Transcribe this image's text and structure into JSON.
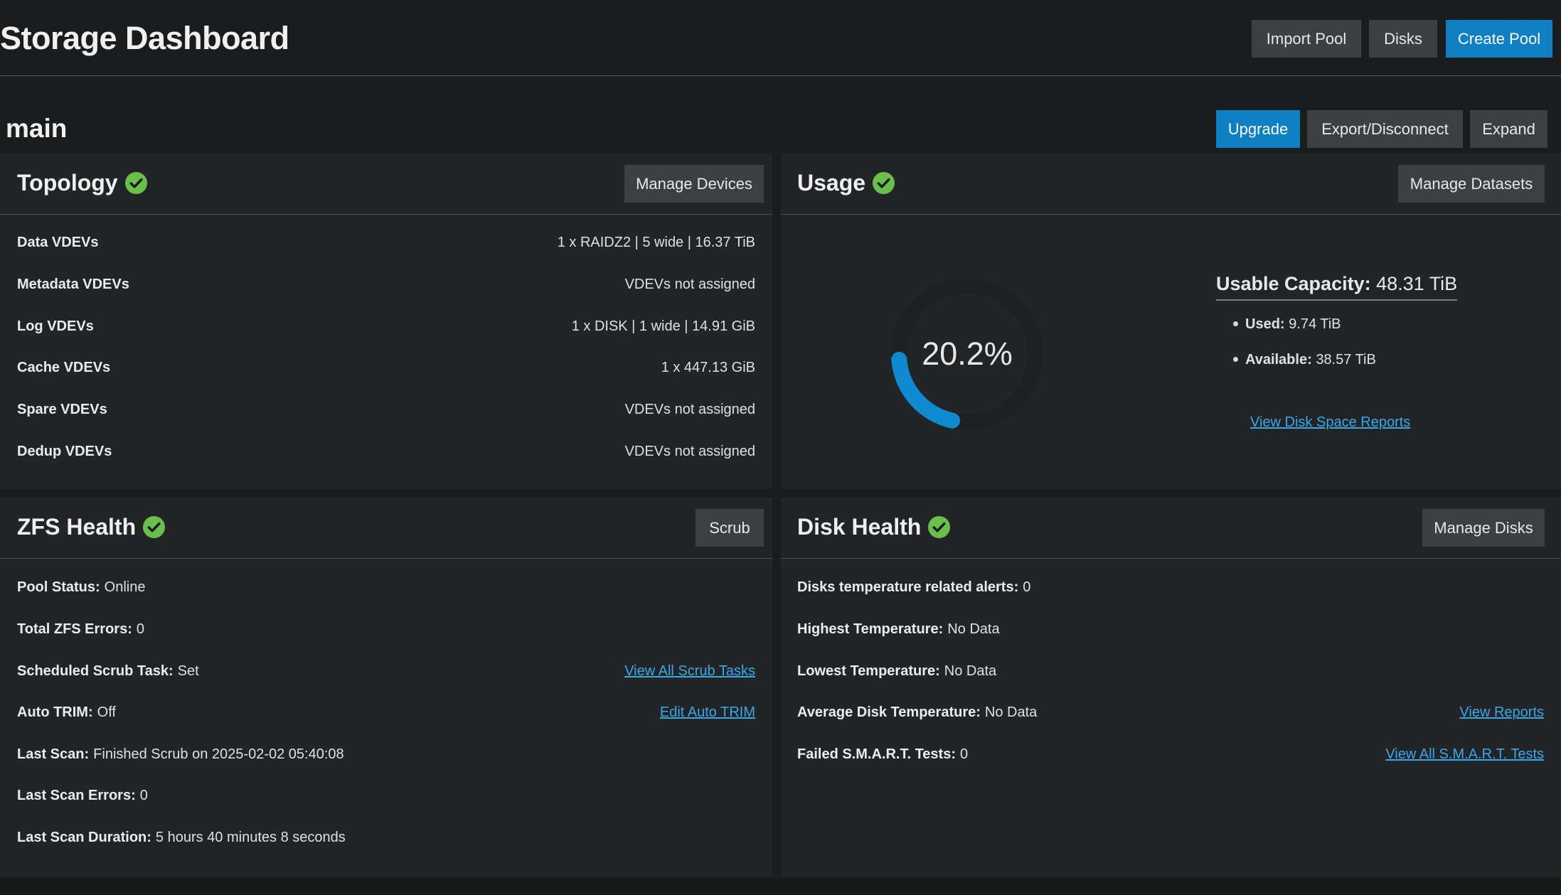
{
  "header": {
    "title": "Storage Dashboard",
    "buttons": {
      "import_pool": "Import Pool",
      "disks": "Disks",
      "create_pool": "Create Pool"
    }
  },
  "pool": {
    "name": "main",
    "buttons": {
      "upgrade": "Upgrade",
      "export_disconnect": "Export/Disconnect",
      "expand": "Expand"
    }
  },
  "topology": {
    "title": "Topology",
    "manage_button": "Manage Devices",
    "rows": [
      {
        "label": "Data VDEVs",
        "value": "1 x RAIDZ2 | 5 wide | 16.37 TiB"
      },
      {
        "label": "Metadata VDEVs",
        "value": "VDEVs not assigned"
      },
      {
        "label": "Log VDEVs",
        "value": "1 x DISK | 1 wide | 14.91 GiB"
      },
      {
        "label": "Cache VDEVs",
        "value": "1 x 447.13 GiB"
      },
      {
        "label": "Spare VDEVs",
        "value": "VDEVs not assigned"
      },
      {
        "label": "Dedup VDEVs",
        "value": "VDEVs not assigned"
      }
    ]
  },
  "usage": {
    "title": "Usage",
    "manage_button": "Manage Datasets",
    "percent_text": "20.2%",
    "used_fraction": 0.202,
    "capacity_label": "Usable Capacity:",
    "capacity_value": "48.31 TiB",
    "used_label": "Used:",
    "used_value": "9.74 TiB",
    "available_label": "Available:",
    "available_value": "38.57 TiB",
    "report_link": "View Disk Space Reports"
  },
  "zfs_health": {
    "title": "ZFS Health",
    "scrub_button": "Scrub",
    "rows": [
      {
        "label": "Pool Status:",
        "value": "Online"
      },
      {
        "label": "Total ZFS Errors:",
        "value": "0"
      },
      {
        "label": "Scheduled Scrub Task:",
        "value": "Set",
        "link": "View All Scrub Tasks"
      },
      {
        "label": "Auto TRIM:",
        "value": "Off",
        "link": "Edit Auto TRIM"
      },
      {
        "label": "Last Scan:",
        "value": "Finished Scrub on 2025-02-02 05:40:08"
      },
      {
        "label": "Last Scan Errors:",
        "value": "0"
      },
      {
        "label": "Last Scan Duration:",
        "value": "5 hours 40 minutes 8 seconds"
      }
    ]
  },
  "disk_health": {
    "title": "Disk Health",
    "manage_button": "Manage Disks",
    "rows": [
      {
        "label": "Disks temperature related alerts:",
        "value": "0"
      },
      {
        "label": "Highest Temperature:",
        "value": "No Data"
      },
      {
        "label": "Lowest Temperature:",
        "value": "No Data"
      },
      {
        "label": "Average Disk Temperature:",
        "value": "No Data",
        "link": "View Reports"
      },
      {
        "label": "Failed S.M.A.R.T. Tests:",
        "value": "0",
        "link": "View All S.M.A.R.T. Tests"
      }
    ]
  },
  "colors": {
    "accent": "#0d7fc2",
    "gauge_fill": "#0d8ad0",
    "gauge_track": "#1f2021",
    "ok_green": "#6abf4b",
    "link": "#37a8ea"
  },
  "icons": {
    "status_ok": "check-circle-icon",
    "bullet": "bullet-dot-icon"
  }
}
